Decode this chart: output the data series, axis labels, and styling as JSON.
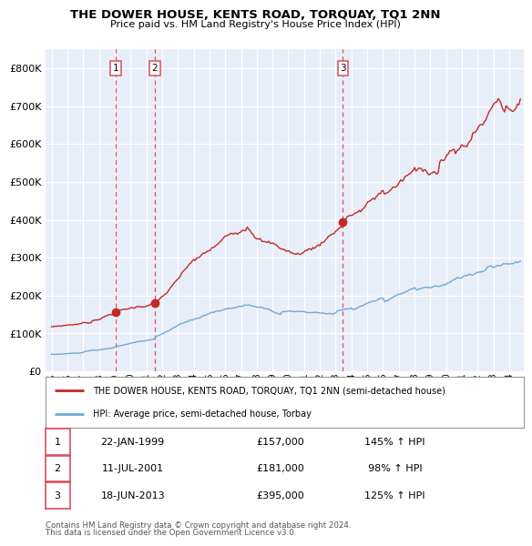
{
  "title": "THE DOWER HOUSE, KENTS ROAD, TORQUAY, TQ1 2NN",
  "subtitle": "Price paid vs. HM Land Registry's House Price Index (HPI)",
  "legend_line1": "THE DOWER HOUSE, KENTS ROAD, TORQUAY, TQ1 2NN (semi-detached house)",
  "legend_line2": "HPI: Average price, semi-detached house, Torbay",
  "footer1": "Contains HM Land Registry data © Crown copyright and database right 2024.",
  "footer2": "This data is licensed under the Open Government Licence v3.0.",
  "transactions": [
    {
      "num": 1,
      "date": "22-JAN-1999",
      "price": "£157,000",
      "hpi": "145% ↑ HPI",
      "year": 1999.06
    },
    {
      "num": 2,
      "date": "11-JUL-2001",
      "price": "£181,000",
      "hpi": "98% ↑ HPI",
      "year": 2001.53
    },
    {
      "num": 3,
      "date": "18-JUN-2013",
      "price": "£395,000",
      "hpi": "125% ↑ HPI",
      "year": 2013.46
    }
  ],
  "transaction_values": [
    157000,
    181000,
    395000
  ],
  "vline_color": "#d94f5c",
  "red_line_color": "#c0292a",
  "blue_line_color": "#6eaad4",
  "ylim": [
    0,
    850000
  ],
  "xlim_start": 1994.6,
  "xlim_end": 2024.9,
  "yticks": [
    0,
    100000,
    200000,
    300000,
    400000,
    500000,
    600000,
    700000,
    800000
  ],
  "xticks": [
    1995,
    1996,
    1997,
    1998,
    1999,
    2000,
    2001,
    2002,
    2003,
    2004,
    2005,
    2006,
    2007,
    2008,
    2009,
    2010,
    2011,
    2012,
    2013,
    2014,
    2015,
    2016,
    2017,
    2018,
    2019,
    2020,
    2021,
    2022,
    2023,
    2024
  ],
  "background_color": "#e8eef8"
}
